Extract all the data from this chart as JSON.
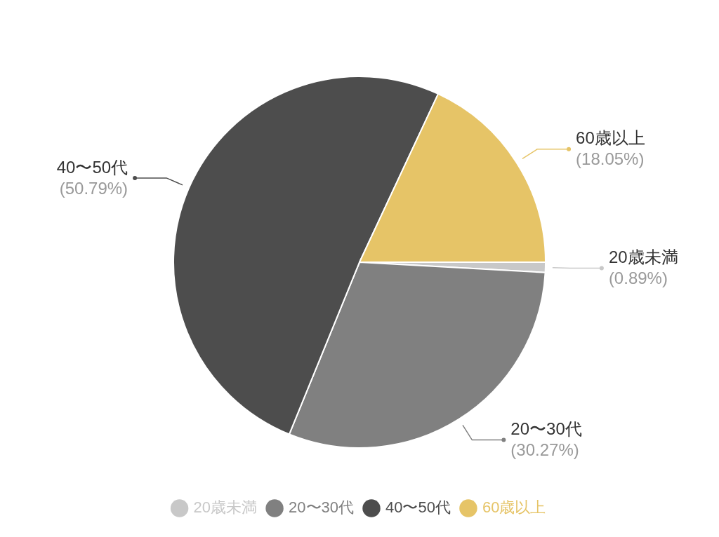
{
  "chart_data": {
    "type": "pie",
    "categories": [
      "20歳未満",
      "20〜30代",
      "40〜50代",
      "60歳以上"
    ],
    "values": [
      0.89,
      30.27,
      50.79,
      18.05
    ],
    "colors": [
      "#c8c8c8",
      "#808080",
      "#4d4d4d",
      "#e6c467"
    ],
    "value_labels": [
      "(0.89%)",
      "(30.27%)",
      "(50.79%)",
      "(18.05%)"
    ],
    "legend": "bottom"
  }
}
